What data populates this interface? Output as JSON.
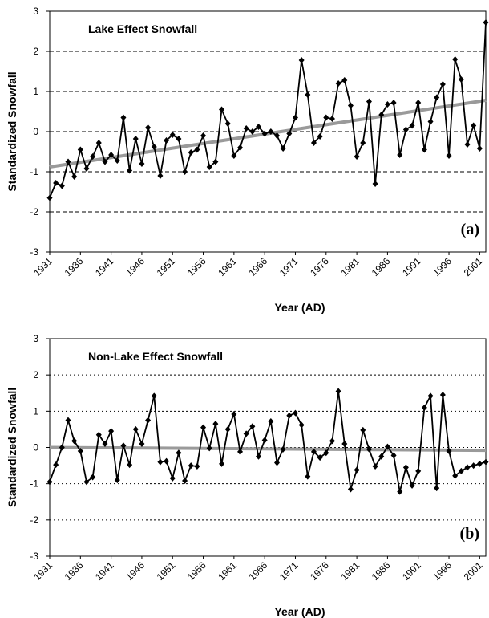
{
  "chart_data": [
    {
      "type": "line",
      "title": "Lake Effect Snowfall",
      "panel_label": "(a)",
      "xlabel": "Year (AD)",
      "ylabel": "Standardized Snowfall",
      "x": [
        1931,
        1932,
        1933,
        1934,
        1935,
        1936,
        1937,
        1938,
        1939,
        1940,
        1941,
        1942,
        1943,
        1944,
        1945,
        1946,
        1947,
        1948,
        1949,
        1950,
        1951,
        1952,
        1953,
        1954,
        1955,
        1956,
        1957,
        1958,
        1959,
        1960,
        1961,
        1962,
        1963,
        1964,
        1965,
        1966,
        1967,
        1968,
        1969,
        1970,
        1971,
        1972,
        1973,
        1974,
        1975,
        1976,
        1977,
        1978,
        1979,
        1980,
        1981,
        1982,
        1983,
        1984,
        1985,
        1986,
        1987,
        1988,
        1989,
        1990,
        1991,
        1992,
        1993,
        1994,
        1995,
        1996,
        1997,
        1998,
        1999,
        2000,
        2001,
        2002
      ],
      "values": [
        -1.65,
        -1.28,
        -1.35,
        -0.75,
        -1.12,
        -0.45,
        -0.92,
        -0.62,
        -0.28,
        -0.75,
        -0.58,
        -0.72,
        0.35,
        -0.97,
        -0.18,
        -0.8,
        0.1,
        -0.38,
        -1.1,
        -0.22,
        -0.08,
        -0.18,
        -1.0,
        -0.52,
        -0.45,
        -0.1,
        -0.88,
        -0.75,
        0.55,
        0.2,
        -0.6,
        -0.4,
        0.08,
        0.0,
        0.12,
        -0.05,
        0.0,
        -0.1,
        -0.42,
        -0.05,
        0.35,
        1.78,
        0.92,
        -0.28,
        -0.12,
        0.35,
        0.32,
        1.2,
        1.28,
        0.65,
        -0.62,
        -0.28,
        0.75,
        -1.3,
        0.42,
        0.68,
        0.72,
        -0.58,
        0.05,
        0.15,
        0.72,
        -0.45,
        0.25,
        0.85,
        1.18,
        -0.6,
        1.8,
        1.3,
        -0.32,
        0.15,
        -0.42,
        2.72
      ],
      "color": "#000000",
      "trend": {
        "x": [
          1931,
          2002
        ],
        "values": [
          -0.88,
          0.78
        ],
        "color": "#9a9a9a"
      },
      "xlim": [
        1931,
        2002
      ],
      "xticks": [
        1931,
        1936,
        1941,
        1946,
        1951,
        1956,
        1961,
        1966,
        1971,
        1976,
        1981,
        1986,
        1991,
        1996,
        2001
      ],
      "ylim": [
        -3,
        3
      ],
      "yticks": [
        -3,
        -2,
        -1,
        0,
        1,
        2,
        3
      ],
      "grid": "dashed"
    },
    {
      "type": "line",
      "title": "Non-Lake Effect Snowfall",
      "panel_label": "(b)",
      "xlabel": "Year (AD)",
      "ylabel": "Standardized Snowfall",
      "x": [
        1931,
        1932,
        1933,
        1934,
        1935,
        1936,
        1937,
        1938,
        1939,
        1940,
        1941,
        1942,
        1943,
        1944,
        1945,
        1946,
        1947,
        1948,
        1949,
        1950,
        1951,
        1952,
        1953,
        1954,
        1955,
        1956,
        1957,
        1958,
        1959,
        1960,
        1961,
        1962,
        1963,
        1964,
        1965,
        1966,
        1967,
        1968,
        1969,
        1970,
        1971,
        1972,
        1973,
        1974,
        1975,
        1976,
        1977,
        1978,
        1979,
        1980,
        1981,
        1982,
        1983,
        1984,
        1985,
        1986,
        1987,
        1988,
        1989,
        1990,
        1991,
        1992,
        1993,
        1994,
        1995,
        1996,
        1997,
        1998,
        1999,
        2000,
        2001,
        2002
      ],
      "values": [
        -0.95,
        -0.48,
        0.0,
        0.75,
        0.18,
        -0.1,
        -0.95,
        -0.82,
        0.35,
        0.1,
        0.45,
        -0.9,
        0.05,
        -0.48,
        0.5,
        0.1,
        0.75,
        1.42,
        -0.4,
        -0.38,
        -0.85,
        -0.15,
        -0.92,
        -0.5,
        -0.52,
        0.55,
        -0.02,
        0.65,
        -0.45,
        0.5,
        0.92,
        -0.12,
        0.38,
        0.58,
        -0.25,
        0.2,
        0.72,
        -0.42,
        -0.05,
        0.88,
        0.95,
        0.62,
        -0.8,
        -0.12,
        -0.28,
        -0.15,
        0.18,
        1.55,
        0.1,
        -1.15,
        -0.62,
        0.48,
        -0.05,
        -0.52,
        -0.25,
        0.02,
        -0.22,
        -1.22,
        -0.55,
        -1.05,
        -0.65,
        1.1,
        1.42,
        -1.12,
        1.45,
        -0.1,
        -0.78,
        -0.65,
        -0.55,
        -0.5,
        -0.45,
        -0.4
      ],
      "color": "#000000",
      "trend": {
        "x": [
          1931,
          2002
        ],
        "values": [
          0.0,
          -0.08
        ],
        "color": "#9a9a9a"
      },
      "xlim": [
        1931,
        2002
      ],
      "xticks": [
        1931,
        1936,
        1941,
        1946,
        1951,
        1956,
        1961,
        1966,
        1971,
        1976,
        1981,
        1986,
        1991,
        1996,
        2001
      ],
      "ylim": [
        -3,
        3
      ],
      "yticks": [
        -3,
        -2,
        -1,
        0,
        1,
        2,
        3
      ],
      "grid": "dotted"
    }
  ]
}
